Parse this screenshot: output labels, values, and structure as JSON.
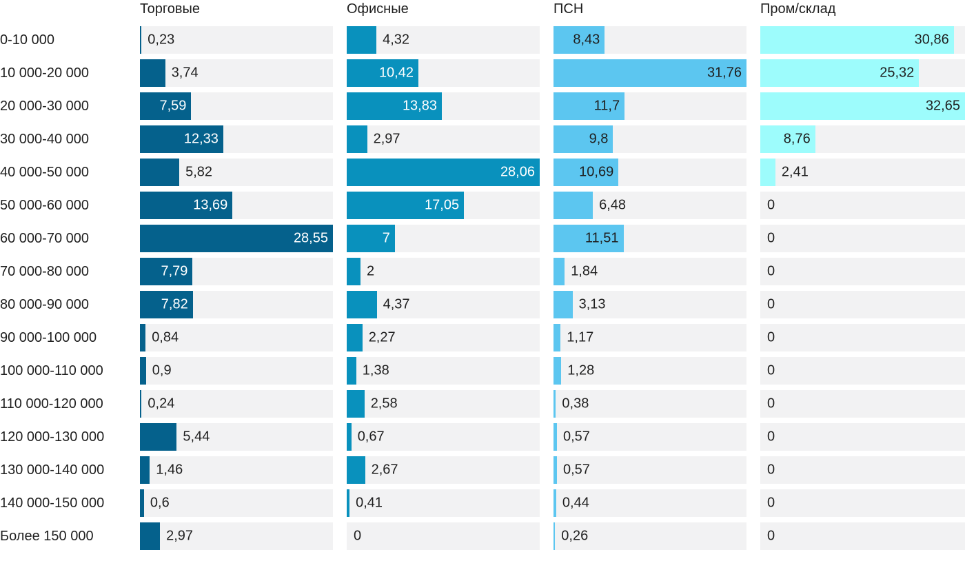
{
  "chart_data": {
    "type": "bar",
    "orientation": "horizontal",
    "grid": false,
    "legend_position": "column-headers",
    "note": "small-multiples bar chart; each column scaled to its own max",
    "value_color": "#1f1f1f",
    "track_color": "#f2f2f3",
    "categories": [
      "0-10 000",
      "10 000-20 000",
      "20 000-30 000",
      "30 000-40 000",
      "40 000-50 000",
      "50 000-60 000",
      "60 000-70 000",
      "70 000-80 000",
      "80 000-90 000",
      "90 000-100 000",
      "100 000-110 000",
      "110 000-120 000",
      "120 000-130 000",
      "130 000-140 000",
      "140 000-150 000",
      "Более 150 000"
    ],
    "series": [
      {
        "name": "Торговые",
        "color": "#05618c",
        "inside_text": "#ffffff",
        "max": 28.55,
        "values": [
          0.23,
          3.74,
          7.59,
          12.33,
          5.82,
          13.69,
          28.55,
          7.79,
          7.82,
          0.84,
          0.9,
          0.24,
          5.44,
          1.46,
          0.6,
          2.97
        ],
        "labels": [
          "0,23",
          "3,74",
          "7,59",
          "12,33",
          "5,82",
          "13,69",
          "28,55",
          "7,79",
          "7,82",
          "0,84",
          "0,9",
          "0,24",
          "5,44",
          "1,46",
          "0,6",
          "2,97"
        ]
      },
      {
        "name": "Офисные",
        "color": "#0991bd",
        "inside_text": "#ffffff",
        "max": 28.06,
        "values": [
          4.32,
          10.42,
          13.83,
          2.97,
          28.06,
          17.05,
          7,
          2,
          4.37,
          2.27,
          1.38,
          2.58,
          0.67,
          2.67,
          0.41,
          0
        ],
        "labels": [
          "4,32",
          "10,42",
          "13,83",
          "2,97",
          "28,06",
          "17,05",
          "7",
          "2",
          "4,37",
          "2,27",
          "1,38",
          "2,58",
          "0,67",
          "2,67",
          "0,41",
          "0"
        ]
      },
      {
        "name": "ПСН",
        "color": "#5cc6f0",
        "inside_text": "#1f1f1f",
        "max": 31.76,
        "values": [
          8.43,
          31.76,
          11.7,
          9.8,
          10.69,
          6.48,
          11.51,
          1.84,
          3.13,
          1.17,
          1.28,
          0.38,
          0.57,
          0.57,
          0.44,
          0.26
        ],
        "labels": [
          "8,43",
          "31,76",
          "11,7",
          "9,8",
          "10,69",
          "6,48",
          "11,51",
          "1,84",
          "3,13",
          "1,17",
          "1,28",
          "0,38",
          "0,57",
          "0,57",
          "0,44",
          "0,26"
        ]
      },
      {
        "name": "Пром/склад",
        "color": "#9dfcfc",
        "inside_text": "#1f1f1f",
        "max": 32.65,
        "values": [
          30.86,
          25.32,
          32.65,
          8.76,
          2.41,
          0,
          0,
          0,
          0,
          0,
          0,
          0,
          0,
          0,
          0,
          0
        ],
        "labels": [
          "30,86",
          "25,32",
          "32,65",
          "8,76",
          "2,41",
          "0",
          "0",
          "0",
          "0",
          "0",
          "0",
          "0",
          "0",
          "0",
          "0",
          "0"
        ]
      }
    ]
  }
}
